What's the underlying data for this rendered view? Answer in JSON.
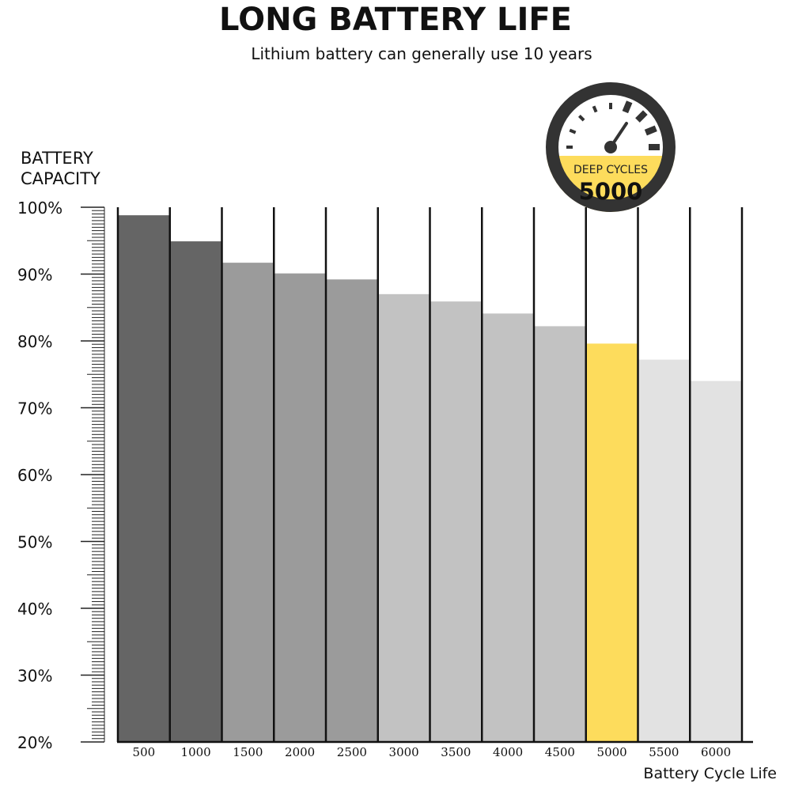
{
  "chart_data": {
    "type": "bar",
    "title": "LONG BATTERY LIFE",
    "subtitle": "Lithium battery can generally use 10 years",
    "ylabel_lines": [
      "BATTERY",
      "CAPACITY"
    ],
    "xlabel": "Battery Cycle Life",
    "categories": [
      "500",
      "1000",
      "1500",
      "2000",
      "2500",
      "3000",
      "3500",
      "4000",
      "4500",
      "5000",
      "5500",
      "6000"
    ],
    "values": [
      98.8,
      94.9,
      91.7,
      90.1,
      89.2,
      87.0,
      85.9,
      84.1,
      82.2,
      79.6,
      77.2,
      74.0
    ],
    "ylim": [
      20,
      100
    ],
    "yticks": [
      "100%",
      "90%",
      "80%",
      "70%",
      "60%",
      "50%",
      "40%",
      "30%",
      "20%"
    ],
    "bar_colors": [
      "#656565",
      "#656565",
      "#9b9b9b",
      "#9b9b9b",
      "#9b9b9b",
      "#c2c2c2",
      "#c2c2c2",
      "#c2c2c2",
      "#c2c2c2",
      "#fddc5c",
      "#e2e2e2",
      "#e2e2e2"
    ],
    "highlight_category": "5000",
    "legend": "none",
    "grid": false
  },
  "badge": {
    "label": "DEEP CYCLES",
    "value": "5000",
    "icon": "speedometer-icon",
    "accent": "#fddc5c",
    "ring_color": "#333333"
  }
}
